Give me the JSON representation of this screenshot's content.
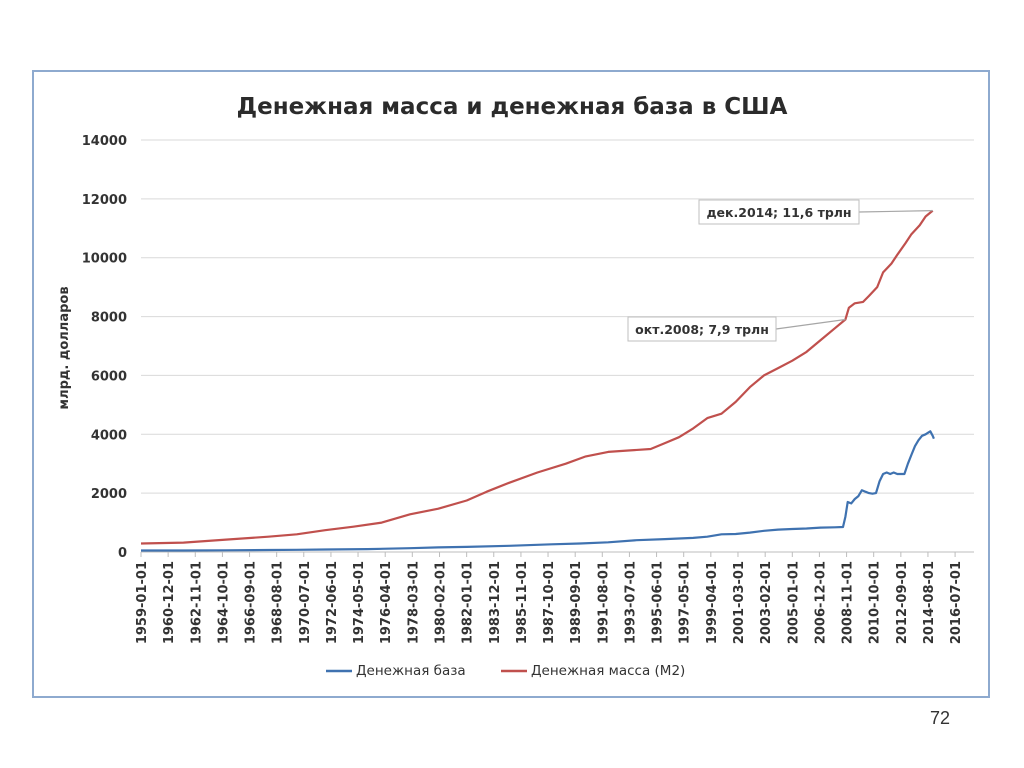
{
  "page_number": "72",
  "chart_data": {
    "type": "line",
    "title": "Денежная масса и денежная база в США",
    "ylabel": "млрд. долларов",
    "xlabel": "",
    "ylim": [
      0,
      14000
    ],
    "yticks": [
      0,
      2000,
      4000,
      6000,
      8000,
      10000,
      12000,
      14000
    ],
    "xlim": [
      "1959-01-01",
      "2017-11-01"
    ],
    "xticks": [
      "1959-01-01",
      "1960-12-01",
      "1962-11-01",
      "1964-10-01",
      "1966-09-01",
      "1968-08-01",
      "1970-07-01",
      "1972-06-01",
      "1974-05-01",
      "1976-04-01",
      "1978-03-01",
      "1980-02-01",
      "1982-01-01",
      "1983-12-01",
      "1985-11-01",
      "1987-10-01",
      "1989-09-01",
      "1991-08-01",
      "1993-07-01",
      "1995-06-01",
      "1997-05-01",
      "1999-04-01",
      "2001-03-01",
      "2003-02-01",
      "2005-01-01",
      "2006-12-01",
      "2008-11-01",
      "2010-10-01",
      "2012-09-01",
      "2014-08-01",
      "2016-07-01"
    ],
    "grid": true,
    "legend_position": "bottom",
    "series": [
      {
        "name": "Денежная база",
        "color": "#3f72b0",
        "points": [
          [
            "1959-01-01",
            50
          ],
          [
            "1962-01-01",
            52
          ],
          [
            "1965-01-01",
            58
          ],
          [
            "1968-01-01",
            68
          ],
          [
            "1970-01-01",
            75
          ],
          [
            "1972-01-01",
            85
          ],
          [
            "1975-01-01",
            100
          ],
          [
            "1978-01-01",
            130
          ],
          [
            "1980-01-01",
            155
          ],
          [
            "1982-01-01",
            175
          ],
          [
            "1985-01-01",
            210
          ],
          [
            "1988-01-01",
            260
          ],
          [
            "1990-01-01",
            290
          ],
          [
            "1992-01-01",
            330
          ],
          [
            "1994-01-01",
            400
          ],
          [
            "1996-01-01",
            440
          ],
          [
            "1998-01-01",
            480
          ],
          [
            "1999-01-01",
            520
          ],
          [
            "2000-01-01",
            600
          ],
          [
            "2001-01-01",
            610
          ],
          [
            "2002-01-01",
            660
          ],
          [
            "2003-01-01",
            720
          ],
          [
            "2004-01-01",
            760
          ],
          [
            "2005-01-01",
            780
          ],
          [
            "2006-01-01",
            800
          ],
          [
            "2007-01-01",
            830
          ],
          [
            "2008-01-01",
            840
          ],
          [
            "2008-08-01",
            850
          ],
          [
            "2008-10-01",
            1200
          ],
          [
            "2008-12-01",
            1700
          ],
          [
            "2009-03-01",
            1650
          ],
          [
            "2009-06-01",
            1800
          ],
          [
            "2009-09-01",
            1900
          ],
          [
            "2009-12-01",
            2100
          ],
          [
            "2010-03-01",
            2050
          ],
          [
            "2010-06-01",
            2000
          ],
          [
            "2010-09-01",
            1980
          ],
          [
            "2010-12-01",
            2000
          ],
          [
            "2011-03-01",
            2400
          ],
          [
            "2011-06-01",
            2650
          ],
          [
            "2011-09-01",
            2700
          ],
          [
            "2011-12-01",
            2650
          ],
          [
            "2012-03-01",
            2700
          ],
          [
            "2012-06-01",
            2650
          ],
          [
            "2012-09-01",
            2650
          ],
          [
            "2012-12-01",
            2650
          ],
          [
            "2013-03-01",
            3000
          ],
          [
            "2013-06-01",
            3300
          ],
          [
            "2013-09-01",
            3600
          ],
          [
            "2013-12-01",
            3800
          ],
          [
            "2014-03-01",
            3950
          ],
          [
            "2014-06-01",
            4000
          ],
          [
            "2014-08-01",
            4050
          ],
          [
            "2014-10-01",
            4100
          ],
          [
            "2014-12-01",
            3950
          ],
          [
            "2015-01-01",
            3850
          ]
        ]
      },
      {
        "name": "Денежная масса (М2)",
        "color": "#c0504d",
        "points": [
          [
            "1959-01-01",
            290
          ],
          [
            "1962-01-01",
            320
          ],
          [
            "1965-01-01",
            420
          ],
          [
            "1968-01-01",
            520
          ],
          [
            "1970-01-01",
            600
          ],
          [
            "1972-01-01",
            740
          ],
          [
            "1974-01-01",
            860
          ],
          [
            "1976-01-01",
            1000
          ],
          [
            "1978-01-01",
            1280
          ],
          [
            "1980-01-01",
            1470
          ],
          [
            "1982-01-01",
            1750
          ],
          [
            "1983-06-01",
            2050
          ],
          [
            "1985-01-01",
            2350
          ],
          [
            "1987-01-01",
            2700
          ],
          [
            "1989-01-01",
            3000
          ],
          [
            "1990-06-01",
            3250
          ],
          [
            "1992-01-01",
            3400
          ],
          [
            "1993-06-01",
            3450
          ],
          [
            "1995-01-01",
            3500
          ],
          [
            "1996-01-01",
            3700
          ],
          [
            "1997-01-01",
            3900
          ],
          [
            "1998-01-01",
            4200
          ],
          [
            "1999-01-01",
            4550
          ],
          [
            "2000-01-01",
            4700
          ],
          [
            "2001-01-01",
            5100
          ],
          [
            "2002-01-01",
            5600
          ],
          [
            "2003-01-01",
            6000
          ],
          [
            "2004-01-01",
            6250
          ],
          [
            "2005-01-01",
            6500
          ],
          [
            "2006-01-01",
            6800
          ],
          [
            "2007-01-01",
            7200
          ],
          [
            "2008-01-01",
            7600
          ],
          [
            "2008-10-01",
            7900
          ],
          [
            "2009-01-01",
            8300
          ],
          [
            "2009-06-01",
            8450
          ],
          [
            "2010-01-01",
            8500
          ],
          [
            "2010-06-01",
            8700
          ],
          [
            "2011-01-01",
            9000
          ],
          [
            "2011-06-01",
            9500
          ],
          [
            "2012-01-01",
            9800
          ],
          [
            "2012-06-01",
            10100
          ],
          [
            "2013-01-01",
            10500
          ],
          [
            "2013-06-01",
            10800
          ],
          [
            "2014-01-01",
            11100
          ],
          [
            "2014-06-01",
            11400
          ],
          [
            "2014-12-01",
            11600
          ]
        ]
      }
    ],
    "annotations": [
      {
        "text": "дек.2014; 11,6 трлн",
        "x": "2014-12-01",
        "y": 11600
      },
      {
        "text": "окт.2008; 7,9 трлн",
        "x": "2008-10-01",
        "y": 7900
      }
    ]
  }
}
